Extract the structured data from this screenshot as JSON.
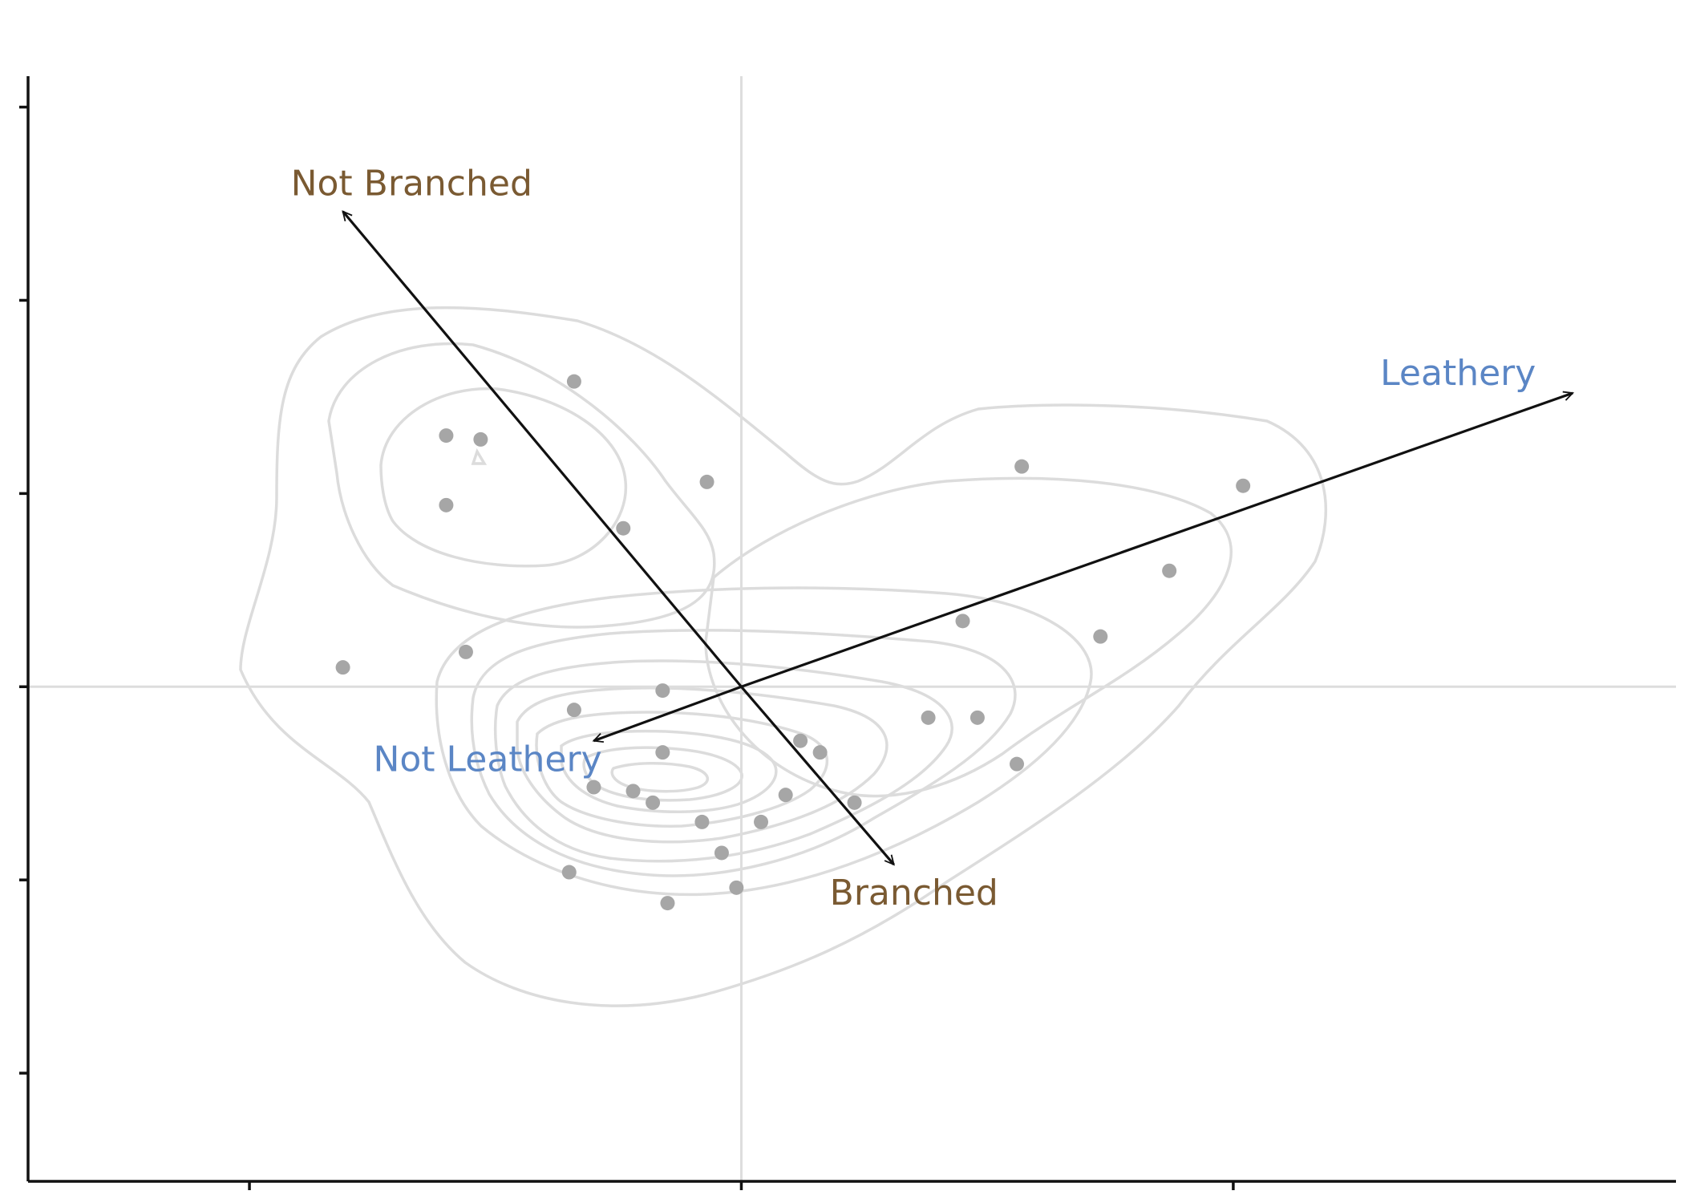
{
  "chart_data": {
    "type": "scatter",
    "title": "",
    "xlabel": "",
    "ylabel": "",
    "xlim": [
      -1.45,
      1.9
    ],
    "ylim": [
      -1.28,
      1.58
    ],
    "x_ticks": [
      -1,
      0,
      1
    ],
    "y_ticks": [
      -1,
      -0.5,
      0,
      0.5,
      1,
      1.5
    ],
    "grid": false,
    "reference_lines": {
      "x": 0,
      "y": 0,
      "color": "#dddddd"
    },
    "point_color": "#a6a6a6",
    "contour_color": "#dcdcdc",
    "points": [
      {
        "x": -0.34,
        "y": 0.79
      },
      {
        "x": -0.6,
        "y": 0.65
      },
      {
        "x": -0.53,
        "y": 0.64
      },
      {
        "x": -0.07,
        "y": 0.53
      },
      {
        "x": -0.6,
        "y": 0.47
      },
      {
        "x": -0.24,
        "y": 0.41
      },
      {
        "x": 0.57,
        "y": 0.57
      },
      {
        "x": 1.02,
        "y": 0.52
      },
      {
        "x": 0.87,
        "y": 0.3
      },
      {
        "x": 0.45,
        "y": 0.17
      },
      {
        "x": 0.73,
        "y": 0.13
      },
      {
        "x": -0.81,
        "y": 0.05
      },
      {
        "x": -0.56,
        "y": 0.09
      },
      {
        "x": -0.16,
        "y": -0.01
      },
      {
        "x": -0.34,
        "y": -0.06
      },
      {
        "x": 0.38,
        "y": -0.08
      },
      {
        "x": 0.48,
        "y": -0.08
      },
      {
        "x": 0.12,
        "y": -0.14
      },
      {
        "x": 0.16,
        "y": -0.17
      },
      {
        "x": -0.16,
        "y": -0.17
      },
      {
        "x": 0.56,
        "y": -0.2
      },
      {
        "x": -0.3,
        "y": -0.26
      },
      {
        "x": -0.22,
        "y": -0.27
      },
      {
        "x": -0.18,
        "y": -0.3
      },
      {
        "x": 0.09,
        "y": -0.28
      },
      {
        "x": 0.23,
        "y": -0.3
      },
      {
        "x": -0.08,
        "y": -0.35
      },
      {
        "x": 0.04,
        "y": -0.35
      },
      {
        "x": -0.04,
        "y": -0.43
      },
      {
        "x": -0.35,
        "y": -0.48
      },
      {
        "x": -0.01,
        "y": -0.52
      },
      {
        "x": -0.15,
        "y": -0.56
      }
    ],
    "arrows": [
      {
        "label": "Leathery",
        "color": "#5b86c5",
        "x": 1.69,
        "y": 0.76
      },
      {
        "label": "Not Leathery",
        "color": "#5b86c5",
        "x": -0.3,
        "y": -0.14
      },
      {
        "label": "Not Branched",
        "color": "#7a5a32",
        "x": -0.81,
        "y": 1.23
      },
      {
        "label": "Branched",
        "color": "#7a5a32",
        "x": 0.31,
        "y": -0.46
      }
    ],
    "density_contours": 10
  }
}
